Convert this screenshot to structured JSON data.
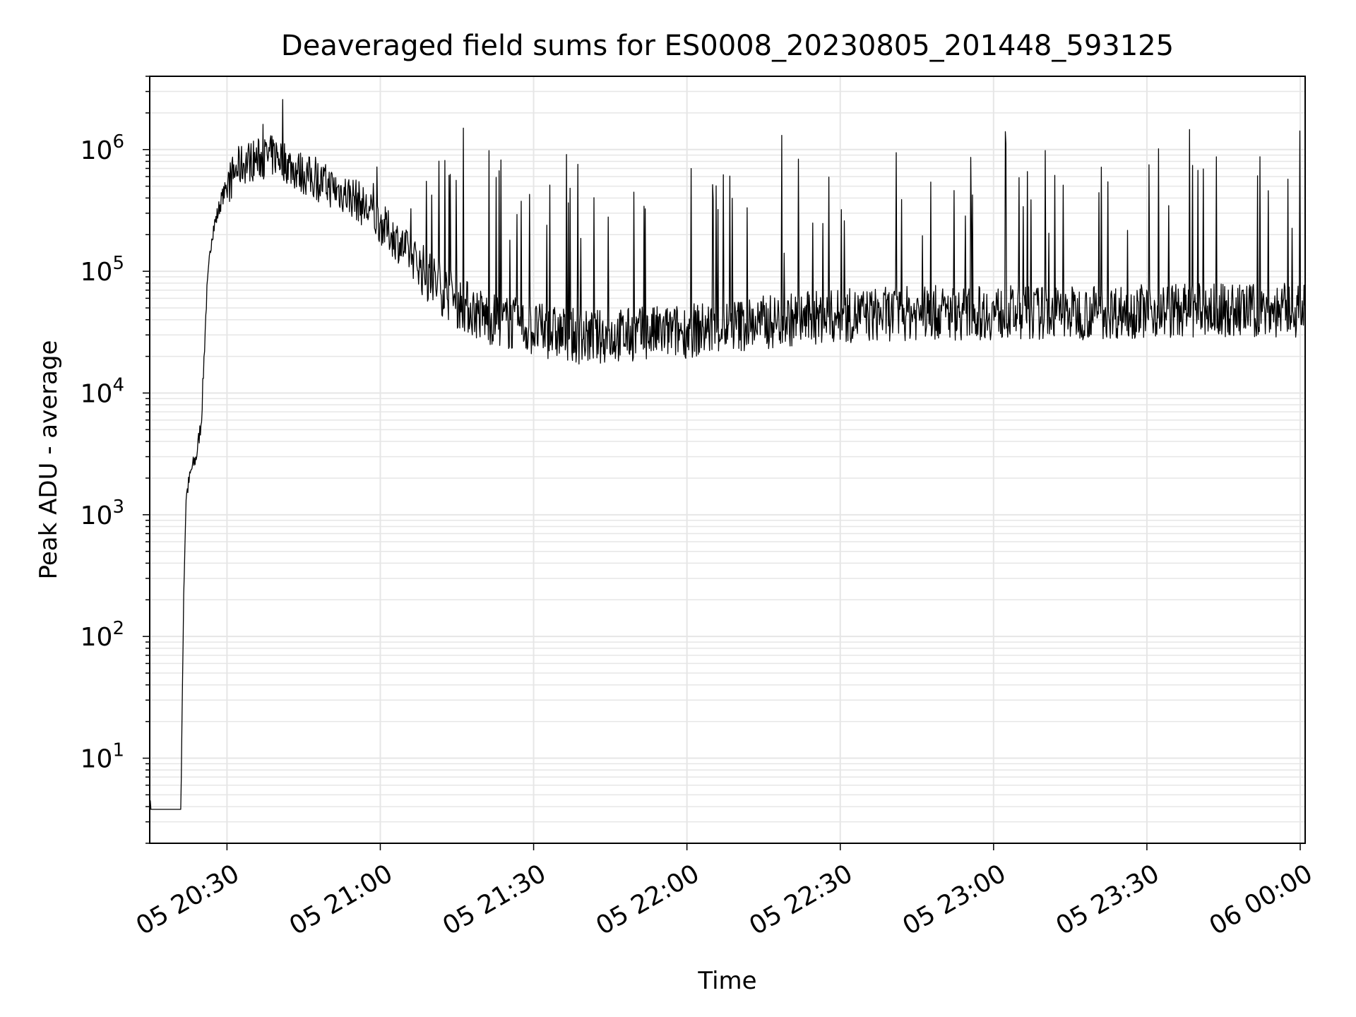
{
  "chart_data": {
    "type": "line",
    "title": "Deaveraged field sums for ES0008_20230805_201448_593125",
    "xlabel": "Time",
    "ylabel": "Peak ADU - average",
    "yscale": "log",
    "ylim": [
      2,
      4000000
    ],
    "xlim": [
      "2023-08-05 20:14:53",
      "2023-08-06 00:00:58"
    ],
    "grid": true,
    "line_color": "#000000",
    "grid_color": "#e6e6e6",
    "x_ticks": [
      {
        "label": "05 20:30",
        "value": "2023-08-05 20:30"
      },
      {
        "label": "05 21:00",
        "value": "2023-08-05 21:00"
      },
      {
        "label": "05 21:30",
        "value": "2023-08-05 21:30"
      },
      {
        "label": "05 22:00",
        "value": "2023-08-05 22:00"
      },
      {
        "label": "05 22:30",
        "value": "2023-08-05 22:30"
      },
      {
        "label": "05 23:00",
        "value": "2023-08-05 23:00"
      },
      {
        "label": "05 23:30",
        "value": "2023-08-05 23:30"
      },
      {
        "label": "06 00:00",
        "value": "2023-08-06 00:00"
      }
    ],
    "y_ticks": [
      {
        "mantissa": "10",
        "exponent": "1",
        "value": 10
      },
      {
        "mantissa": "10",
        "exponent": "2",
        "value": 100
      },
      {
        "mantissa": "10",
        "exponent": "3",
        "value": 1000
      },
      {
        "mantissa": "10",
        "exponent": "4",
        "value": 10000
      },
      {
        "mantissa": "10",
        "exponent": "5",
        "value": 100000
      },
      {
        "mantissa": "10",
        "exponent": "6",
        "value": 1000000
      }
    ],
    "series": [
      {
        "x": [
          "2023-08-05 20:15",
          "2023-08-05 20:21",
          "2023-08-05 20:21:30",
          "2023-08-05 20:22",
          "2023-08-05 20:23",
          "2023-08-05 20:24",
          "2023-08-05 20:25",
          "2023-08-05 20:26",
          "2023-08-05 20:27",
          "2023-08-05 20:28",
          "2023-08-05 20:29",
          "2023-08-05 20:30",
          "2023-08-05 20:32",
          "2023-08-05 20:34",
          "2023-08-05 20:37",
          "2023-08-05 20:40",
          "2023-08-05 20:43",
          "2023-08-05 20:46",
          "2023-08-05 20:50",
          "2023-08-05 20:55",
          "2023-08-05 21:00",
          "2023-08-05 21:05",
          "2023-08-05 21:10",
          "2023-08-05 21:15",
          "2023-08-05 21:20",
          "2023-08-05 21:30",
          "2023-08-05 21:40",
          "2023-08-05 21:50",
          "2023-08-05 22:00",
          "2023-08-05 22:10",
          "2023-08-05 22:20",
          "2023-08-05 22:30",
          "2023-08-05 22:45",
          "2023-08-05 23:00",
          "2023-08-05 23:15",
          "2023-08-05 23:30",
          "2023-08-05 23:45",
          "2023-08-06 00:00",
          "2023-08-06 00:00:55"
        ],
        "y": [
          3.8,
          3.8,
          200,
          1400,
          2300,
          3000,
          6000,
          60000,
          200000,
          280000,
          400000,
          500000,
          700000,
          800000,
          850000,
          900000,
          700000,
          600000,
          500000,
          400000,
          250000,
          150000,
          90000,
          60000,
          45000,
          35000,
          30000,
          32000,
          34000,
          38000,
          42000,
          45000,
          48000,
          48000,
          48000,
          50000,
          50000,
          50000,
          50000
        ]
      }
    ]
  }
}
